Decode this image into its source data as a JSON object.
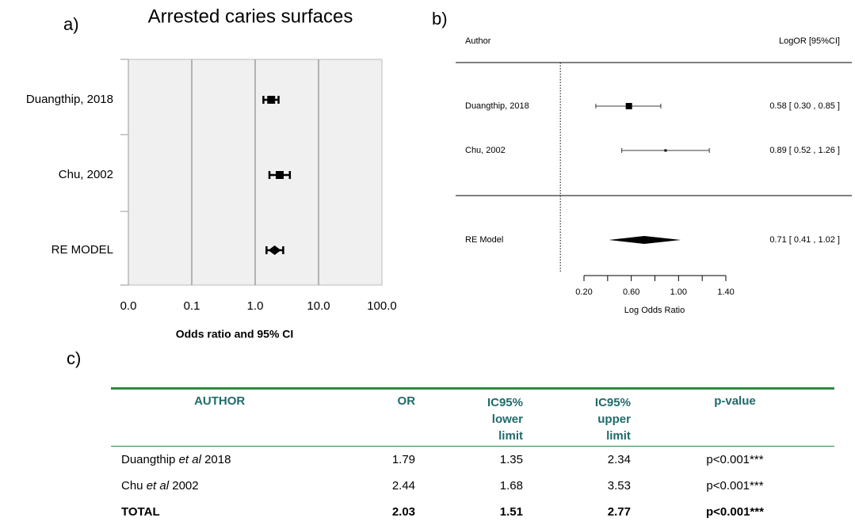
{
  "chart_data": [
    {
      "type": "forest",
      "panel": "a)",
      "title": "Arrested caries surfaces",
      "categories": [
        "Duangthip, 2018",
        "Chu, 2002",
        "RE MODEL"
      ],
      "values": [
        1.79,
        2.44,
        2.03
      ],
      "lower": [
        1.35,
        1.68,
        1.51
      ],
      "upper": [
        2.34,
        3.53,
        2.77
      ],
      "xlabel": "Odds ratio and 95% CI",
      "xscale": "log",
      "xlim": [
        0.01,
        100
      ],
      "xticks": [
        {
          "value": 0.01,
          "label": "0.0"
        },
        {
          "value": 0.1,
          "label": "0.1"
        },
        {
          "value": 1,
          "label": "1.0"
        },
        {
          "value": 10,
          "label": "10.0"
        },
        {
          "value": 100,
          "label": "100.0"
        }
      ],
      "grid": true,
      "color": "#000000",
      "background": "#f0f0f0"
    },
    {
      "type": "forest",
      "panel": "b)",
      "column_headers": [
        "Author",
        "LogOR [95%CI]"
      ],
      "categories": [
        "Duangthip, 2018",
        "Chu, 2002",
        "RE Model"
      ],
      "values": [
        0.58,
        0.89,
        0.71
      ],
      "lower": [
        0.3,
        0.52,
        0.41
      ],
      "upper": [
        0.85,
        1.26,
        1.02
      ],
      "value_labels": [
        "0.58 [ 0.30 , 0.85 ]",
        "0.89 [ 0.52 , 1.26 ]",
        "0.71 [ 0.41 , 1.02 ]"
      ],
      "xlabel": "Log Odds Ratio",
      "xlim": [
        0.2,
        1.4
      ],
      "xticks": [
        {
          "value": 0.2,
          "label": "0.20"
        },
        {
          "value": 0.6,
          "label": "0.60"
        },
        {
          "value": 1,
          "label": "1.00"
        },
        {
          "value": 1.4,
          "label": "1.40"
        }
      ],
      "minor_xticks": [
        0.4,
        0.8,
        1.2
      ],
      "refline": 0,
      "color": "#000000"
    }
  ],
  "table": {
    "panel": "c)",
    "header": [
      "AUTHOR",
      "OR",
      "IC95% lower limit",
      "IC95% upper limit",
      "p-value"
    ],
    "rows": [
      {
        "author": [
          "Duangthip",
          "et al",
          "2018"
        ],
        "cells": [
          1.79,
          1.35,
          2.34,
          "p<0.001***"
        ]
      },
      {
        "author": [
          "Chu",
          "et al",
          "2002"
        ],
        "cells": [
          2.44,
          1.68,
          3.53,
          "p<0.001***"
        ]
      },
      {
        "author": [
          "TOTAL"
        ],
        "cells": [
          2.03,
          1.51,
          2.77,
          "p<0.001***"
        ],
        "bold": true
      }
    ]
  }
}
